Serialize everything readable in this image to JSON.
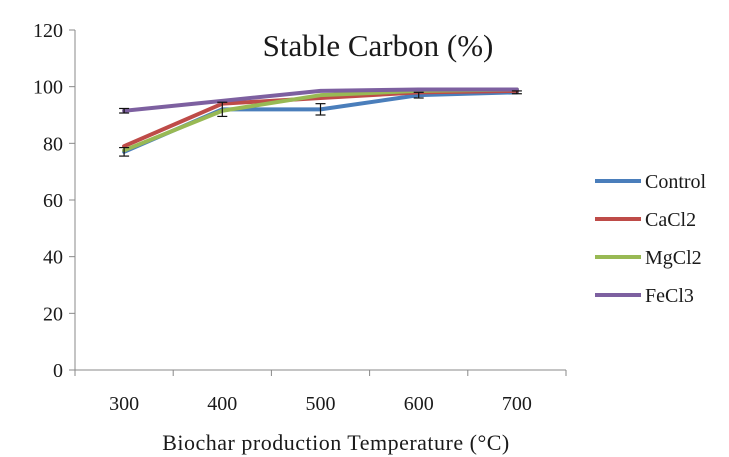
{
  "chart_data": {
    "type": "line",
    "title": "Stable Carbon (%)",
    "xlabel": "Biochar production  Temperature (°C)",
    "ylabel": "",
    "categories": [
      "300",
      "400",
      "500",
      "600",
      "700"
    ],
    "ylim": [
      0,
      120
    ],
    "yticks": [
      "0",
      "20",
      "40",
      "60",
      "80",
      "100",
      "120"
    ],
    "grid": false,
    "legend_position": "right",
    "series": [
      {
        "name": "Control",
        "color": "#4a7ebb",
        "values": [
          77,
          92,
          92,
          97,
          98
        ],
        "errors": [
          1.5,
          2.5,
          2,
          1,
          0.5
        ]
      },
      {
        "name": "CaCl2",
        "color": "#be4b48",
        "values": [
          79,
          94,
          96,
          98,
          98.5
        ],
        "errors": [
          0,
          0,
          0,
          0,
          0
        ]
      },
      {
        "name": "MgCl2",
        "color": "#98b954",
        "values": [
          77.5,
          91.5,
          97,
          98.5,
          99
        ],
        "errors": [
          0,
          0,
          0,
          0,
          0
        ]
      },
      {
        "name": "FeCl3",
        "color": "#7d60a0",
        "values": [
          91.5,
          95,
          98.5,
          99,
          99
        ],
        "errors": [
          0.8,
          0,
          0,
          0,
          0
        ]
      }
    ]
  }
}
